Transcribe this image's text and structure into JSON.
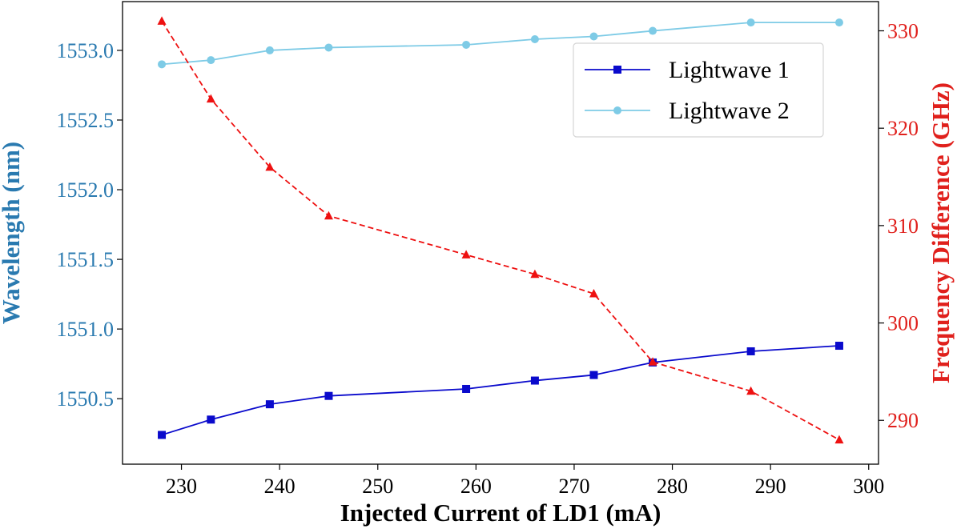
{
  "chart_data": {
    "type": "line",
    "xlabel": "Injected Current of LD1 (mA)",
    "ylabel_left": "Wavelength (nm)",
    "ylabel_right": "Frequency Difference (GHz)",
    "xlim": [
      224,
      301
    ],
    "ylim_left": [
      1550.03,
      1553.35
    ],
    "ylim_right": [
      285.5,
      333
    ],
    "x_ticks": [
      230,
      240,
      250,
      260,
      270,
      280,
      290,
      300
    ],
    "y_ticks_left": [
      1550.5,
      1551.0,
      1551.5,
      1552.0,
      1552.5,
      1553.0
    ],
    "y_ticks_right": [
      290,
      300,
      310,
      320,
      330
    ],
    "legend_position": "top-right",
    "colors": {
      "left_axis": "#2a7ab0",
      "right_axis": "#e0201c",
      "lightwave1": "#0a0acc",
      "lightwave2": "#7ecbe6",
      "freqdiff": "#ee1111"
    },
    "x": [
      228,
      233,
      239,
      245,
      259,
      266,
      272,
      278,
      288,
      297
    ],
    "series": [
      {
        "name": "Lightwave 1",
        "axis": "left",
        "marker": "square",
        "style": "solid",
        "color": "#0a0acc",
        "values": [
          1550.24,
          1550.35,
          1550.46,
          1550.52,
          1550.57,
          1550.63,
          1550.67,
          1550.76,
          1550.84,
          1550.88
        ]
      },
      {
        "name": "Lightwave 2",
        "axis": "left",
        "marker": "circle",
        "style": "solid",
        "color": "#7ecbe6",
        "values": [
          1552.9,
          1552.93,
          1553.0,
          1553.02,
          1553.04,
          1553.08,
          1553.1,
          1553.14,
          1553.2,
          1553.2
        ]
      },
      {
        "axis": "right",
        "marker": "triangle",
        "style": "dashed",
        "color": "#ee1111",
        "values": [
          331,
          323,
          316,
          311,
          307,
          305,
          303,
          296,
          293,
          288
        ]
      }
    ]
  }
}
